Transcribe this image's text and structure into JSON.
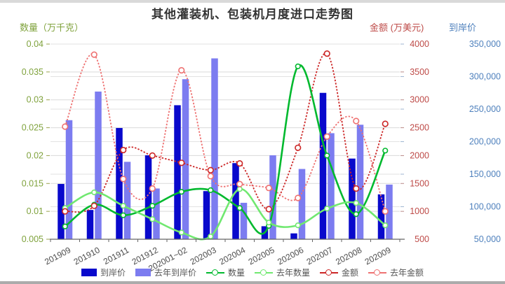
{
  "title": "其他灌装机、包装机月度进口走势图",
  "title_color": "#333333",
  "page": {
    "top_strip_color": "#d9d9d9",
    "bottom_strip_color": "#ababab"
  },
  "axis_headers": {
    "quantity": {
      "text": "数量（万千克）",
      "color": "#7fa23c"
    },
    "amount": {
      "text": "金额 (万美元)",
      "color": "#be4b48"
    },
    "price": {
      "text": "到岸价",
      "color": "#4f81bd"
    }
  },
  "chart_data": {
    "type": "bar+line combo",
    "title": "其他灌装机、包装机月度进口走势图",
    "grid": true,
    "legend_position": "bottom",
    "categories": [
      "201909",
      "201910",
      "201911",
      "201912",
      "202001~02",
      "202003",
      "202004",
      "202005",
      "202006",
      "202007",
      "202008",
      "202009"
    ],
    "axes": {
      "quantity": {
        "label": "数量（万千克）",
        "min": 0.005,
        "max": 0.04,
        "tick_step": 0.005,
        "ticks": [
          "0.04",
          "0.035",
          "0.03",
          "0.025",
          "0.02",
          "0.015",
          "0.01",
          "0.005"
        ],
        "color": "#7fa23c"
      },
      "amount": {
        "label": "金额 (万美元)",
        "min": 500,
        "max": 4000,
        "tick_step": 500,
        "ticks": [
          "4000",
          "3500",
          "3000",
          "2500",
          "2000",
          "1500",
          "1000",
          "500"
        ],
        "color": "#be4b48"
      },
      "price": {
        "label": "到岸价",
        "min": 50000,
        "max": 350000,
        "tick_step": 50000,
        "ticks": [
          "350,000",
          "300,000",
          "250,000",
          "200,000",
          "150,000",
          "100,000",
          "50,000"
        ],
        "color": "#4f81bd"
      }
    },
    "series": [
      {
        "name": "到岸价",
        "type": "bar",
        "axis": "price",
        "color": "#0909cc",
        "dash": "solid",
        "values": [
          135000,
          95000,
          221000,
          179000,
          256000,
          124000,
          167000,
          70000,
          59000,
          275000,
          174000,
          119000
        ]
      },
      {
        "name": "去年到岸价",
        "type": "bar",
        "axis": "price",
        "color": "#7c7cf0",
        "dash": "solid",
        "values": [
          233000,
          277000,
          169000,
          128000,
          296000,
          328000,
          106000,
          179000,
          158000,
          213000,
          226000,
          134000
        ]
      },
      {
        "name": "数量",
        "type": "line",
        "axis": "quantity",
        "color": "#00b92e",
        "dash": "solid",
        "values": [
          0.0073,
          0.0112,
          0.0093,
          0.011,
          0.0135,
          0.0138,
          0.0106,
          0.0074,
          0.036,
          0.02,
          0.0095,
          0.0209
        ]
      },
      {
        "name": "去年数量",
        "type": "line",
        "axis": "quantity",
        "color": "#70e870",
        "dash": "solid",
        "values": [
          0.0106,
          0.0134,
          0.011,
          0.0086,
          0.0062,
          0.0055,
          0.014,
          0.008,
          0.0075,
          0.0105,
          0.0115,
          0.0075
        ]
      },
      {
        "name": "金额",
        "type": "line",
        "axis": "amount",
        "color": "#cc2626",
        "dash": "dotted",
        "values": [
          1000,
          1100,
          2100,
          2000,
          1870,
          1740,
          1860,
          1040,
          2140,
          3830,
          1410,
          2570
        ]
      },
      {
        "name": "去年金额",
        "type": "line",
        "axis": "amount",
        "color": "#ee7272",
        "dash": "dotted",
        "values": [
          2520,
          3810,
          1580,
          1410,
          3530,
          1630,
          1490,
          1420,
          1240,
          2340,
          2620,
          1000
        ]
      }
    ]
  },
  "legend": {
    "items": [
      {
        "label": "到岸价",
        "swatch": "bar",
        "color": "#0909cc"
      },
      {
        "label": "去年到岸价",
        "swatch": "bar",
        "color": "#7c7cf0"
      },
      {
        "label": "数量",
        "swatch": "line",
        "color": "#00b92e"
      },
      {
        "label": "去年数量",
        "swatch": "line",
        "color": "#70e870"
      },
      {
        "label": "金额",
        "swatch": "line",
        "color": "#cc2626"
      },
      {
        "label": "去年金额",
        "swatch": "line",
        "color": "#ee7272"
      }
    ]
  }
}
